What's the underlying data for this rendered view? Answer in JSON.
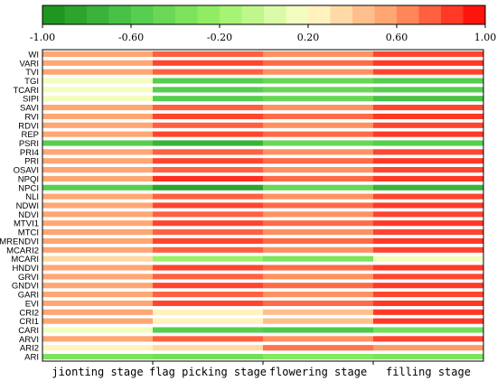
{
  "chart_data": {
    "type": "heatmap",
    "colorbar": {
      "min": -1.0,
      "max": 1.0,
      "ticks": [
        "-1.00",
        "-0.60",
        "-0.20",
        "0.20",
        "0.60",
        "1.00"
      ],
      "tick_values": [
        -1.0,
        -0.6,
        -0.2,
        0.2,
        0.6,
        1.0
      ],
      "colors": [
        "#1a8f1a",
        "#4dc94d",
        "#99f266",
        "#ffffcc",
        "#ff9966",
        "#ff0000"
      ],
      "steps": 20
    },
    "x_categories": [
      "jionting stage",
      "flag picking stage",
      "flowering stage",
      "filling stage"
    ],
    "y_categories": [
      "WI",
      "VARI",
      "TVI",
      "TGI",
      "TCARI",
      "SIPI",
      "SAVI",
      "RVI",
      "RDVI",
      "REP",
      "PSRI",
      "PRI4",
      "PRI",
      "OSAVI",
      "NPQI",
      "NPCI",
      "NLI",
      "NDWI",
      "NDVI",
      "MTVI1",
      "MTCI",
      "MRENDVI",
      "MCARI2",
      "MCARI",
      "HNDVI",
      "GRVI",
      "GNDVI",
      "GARI",
      "EVI",
      "CRI2",
      "CRI1",
      "CARI",
      "ARVI",
      "ARI2",
      "ARI"
    ],
    "values": [
      [
        0.55,
        0.75,
        0.62,
        0.82
      ],
      [
        0.55,
        0.82,
        0.72,
        0.85
      ],
      [
        0.55,
        0.75,
        0.62,
        0.82
      ],
      [
        0.15,
        -0.55,
        -0.45,
        -0.55
      ],
      [
        0.15,
        -0.55,
        -0.45,
        -0.55
      ],
      [
        0.15,
        -0.55,
        -0.45,
        -0.65
      ],
      [
        0.55,
        0.75,
        0.62,
        0.82
      ],
      [
        0.55,
        0.82,
        0.72,
        0.85
      ],
      [
        0.55,
        0.75,
        0.62,
        0.82
      ],
      [
        0.55,
        0.82,
        0.72,
        0.85
      ],
      [
        -0.55,
        -0.75,
        -0.45,
        -0.55
      ],
      [
        0.55,
        0.75,
        0.62,
        0.82
      ],
      [
        0.55,
        0.82,
        0.72,
        0.85
      ],
      [
        0.55,
        0.75,
        0.62,
        0.82
      ],
      [
        0.55,
        0.88,
        0.72,
        0.85
      ],
      [
        -0.55,
        -0.85,
        -0.45,
        -0.75
      ],
      [
        0.55,
        0.75,
        0.62,
        0.82
      ],
      [
        0.55,
        0.82,
        0.72,
        0.85
      ],
      [
        0.55,
        0.75,
        0.62,
        0.82
      ],
      [
        0.55,
        0.82,
        0.72,
        0.85
      ],
      [
        0.55,
        0.75,
        0.62,
        0.82
      ],
      [
        0.55,
        0.82,
        0.72,
        0.85
      ],
      [
        0.55,
        0.75,
        0.62,
        0.82
      ],
      [
        0.35,
        -0.2,
        -0.35,
        0.15
      ],
      [
        0.55,
        0.82,
        0.72,
        0.85
      ],
      [
        0.55,
        0.75,
        0.62,
        0.82
      ],
      [
        0.55,
        0.82,
        0.72,
        0.85
      ],
      [
        0.55,
        0.75,
        0.62,
        0.82
      ],
      [
        0.55,
        0.82,
        0.72,
        0.85
      ],
      [
        0.55,
        0.25,
        0.45,
        0.85
      ],
      [
        0.55,
        0.25,
        0.45,
        0.85
      ],
      [
        0.15,
        -0.55,
        -0.6,
        -0.4
      ],
      [
        0.55,
        0.75,
        0.62,
        0.82
      ],
      [
        0.25,
        0.35,
        0.7,
        0.6
      ],
      [
        -0.35,
        -0.4,
        -0.3,
        -0.35
      ]
    ]
  }
}
